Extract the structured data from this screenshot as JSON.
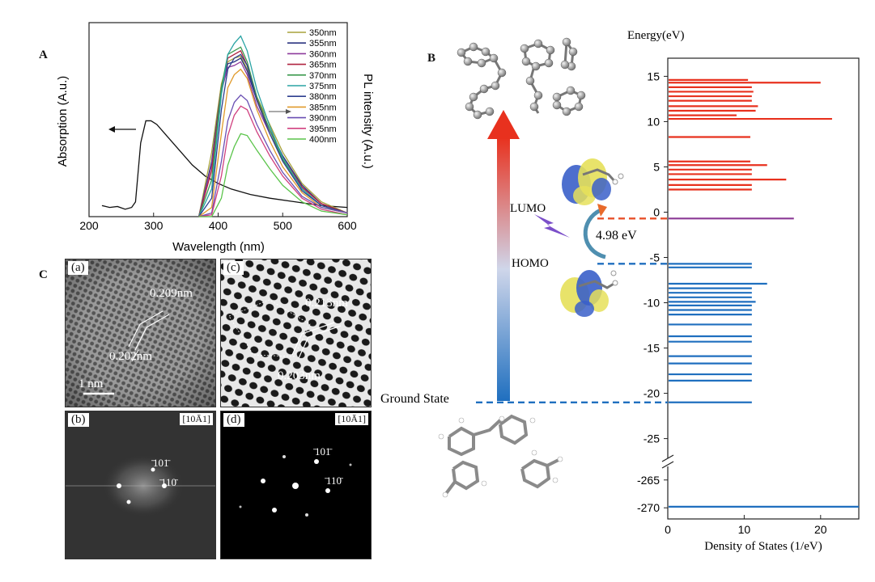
{
  "figure": {
    "panel_labels": {
      "A": "A",
      "B": "B",
      "C": "C"
    },
    "colors": {
      "red": "#e8311e",
      "blue": "#1f6fbf",
      "purple": "#8b3a96"
    }
  },
  "chart_data": [
    {
      "type": "line",
      "panel": "A",
      "xlabel": "Wavelength (nm)",
      "ylabel_left": "Absorption (A.u.)",
      "ylabel_right": "PL intensity (A.u.)",
      "xlim": [
        200,
        600
      ],
      "x_ticks": [
        200,
        300,
        400,
        500,
        600
      ],
      "absorption": {
        "x": [
          220,
          232,
          244,
          256,
          266,
          272,
          280,
          288,
          296,
          305,
          320,
          340,
          360,
          380,
          400,
          420,
          450,
          480,
          520,
          560,
          600
        ],
        "y": [
          0.06,
          0.05,
          0.055,
          0.04,
          0.05,
          0.08,
          0.4,
          0.52,
          0.52,
          0.5,
          0.44,
          0.36,
          0.28,
          0.22,
          0.18,
          0.15,
          0.12,
          0.1,
          0.08,
          0.06,
          0.05
        ]
      },
      "pl_x": [
        370,
        390,
        405,
        415,
        425,
        435,
        445,
        460,
        480,
        500,
        530,
        560,
        600
      ],
      "series": [
        {
          "name": "350nm",
          "color": "#a7a23a",
          "peak": 0.87,
          "values": [
            0.0,
            0.35,
            0.72,
            0.84,
            0.86,
            0.87,
            0.8,
            0.65,
            0.5,
            0.35,
            0.18,
            0.08,
            0.02
          ]
        },
        {
          "name": "355nm",
          "color": "#2b3580",
          "peak": 0.86,
          "values": [
            0.0,
            0.3,
            0.7,
            0.83,
            0.84,
            0.86,
            0.79,
            0.63,
            0.47,
            0.33,
            0.17,
            0.07,
            0.02
          ]
        },
        {
          "name": "360nm",
          "color": "#8e3a9b",
          "peak": 0.84,
          "values": [
            0.0,
            0.28,
            0.68,
            0.81,
            0.82,
            0.84,
            0.77,
            0.6,
            0.45,
            0.31,
            0.16,
            0.07,
            0.02
          ]
        },
        {
          "name": "365nm",
          "color": "#b0233f",
          "peak": 0.9,
          "values": [
            0.0,
            0.25,
            0.7,
            0.86,
            0.88,
            0.9,
            0.82,
            0.64,
            0.47,
            0.32,
            0.16,
            0.07,
            0.02
          ]
        },
        {
          "name": "370nm",
          "color": "#3d9a4f",
          "peak": 0.92,
          "values": [
            0.0,
            0.2,
            0.7,
            0.88,
            0.9,
            0.92,
            0.84,
            0.65,
            0.47,
            0.31,
            0.15,
            0.06,
            0.02
          ]
        },
        {
          "name": "375nm",
          "color": "#2aa4a4",
          "peak": 0.98,
          "values": [
            0.0,
            0.15,
            0.66,
            0.88,
            0.94,
            0.98,
            0.9,
            0.69,
            0.49,
            0.32,
            0.15,
            0.06,
            0.02
          ]
        },
        {
          "name": "380nm",
          "color": "#2e3f8f",
          "peak": 0.88,
          "values": [
            0.0,
            0.1,
            0.58,
            0.8,
            0.86,
            0.88,
            0.82,
            0.63,
            0.45,
            0.3,
            0.14,
            0.06,
            0.02
          ]
        },
        {
          "name": "385nm",
          "color": "#e09a2a",
          "peak": 0.8,
          "values": [
            0.0,
            0.05,
            0.45,
            0.7,
            0.77,
            0.8,
            0.75,
            0.58,
            0.41,
            0.27,
            0.13,
            0.05,
            0.02
          ]
        },
        {
          "name": "390nm",
          "color": "#6a4fb3",
          "peak": 0.66,
          "values": [
            0.0,
            0.02,
            0.3,
            0.52,
            0.62,
            0.66,
            0.63,
            0.5,
            0.36,
            0.24,
            0.11,
            0.05,
            0.02
          ]
        },
        {
          "name": "395nm",
          "color": "#d0407f",
          "peak": 0.6,
          "values": [
            0.0,
            0.01,
            0.22,
            0.44,
            0.55,
            0.6,
            0.58,
            0.46,
            0.33,
            0.22,
            0.1,
            0.04,
            0.01
          ]
        },
        {
          "name": "400nm",
          "color": "#5ac44a",
          "peak": 0.45,
          "values": [
            0.0,
            0.0,
            0.1,
            0.28,
            0.38,
            0.45,
            0.44,
            0.36,
            0.26,
            0.17,
            0.08,
            0.03,
            0.01
          ]
        }
      ]
    },
    {
      "type": "bar",
      "panel": "B",
      "title": "Energy(eV)",
      "xlabel": "Density of States (1/eV)",
      "xlim": [
        0,
        25
      ],
      "x_ticks": [
        0,
        10,
        20
      ],
      "y_ticks_upper": [
        15,
        10,
        5,
        0,
        -5,
        -10,
        -15,
        -20,
        -25
      ],
      "y_ticks_lower": [
        -265,
        -270
      ],
      "ylim_upper": [
        -27,
        17
      ],
      "ylim_lower": [
        -272,
        -263
      ],
      "states_red": [
        {
          "e": 14.6,
          "d": 10.5
        },
        {
          "e": 14.3,
          "d": 20.0
        },
        {
          "e": 13.8,
          "d": 11.0
        },
        {
          "e": 13.3,
          "d": 11.2
        },
        {
          "e": 12.8,
          "d": 11.0
        },
        {
          "e": 12.3,
          "d": 11.0
        },
        {
          "e": 11.7,
          "d": 11.8
        },
        {
          "e": 11.2,
          "d": 11.5
        },
        {
          "e": 10.7,
          "d": 9.0
        },
        {
          "e": 10.3,
          "d": 21.5
        },
        {
          "e": 8.3,
          "d": 10.8
        },
        {
          "e": 5.6,
          "d": 10.8
        },
        {
          "e": 5.2,
          "d": 13.0
        },
        {
          "e": 4.7,
          "d": 11.0
        },
        {
          "e": 4.2,
          "d": 11.0
        },
        {
          "e": 3.6,
          "d": 15.5
        },
        {
          "e": 3.0,
          "d": 11.0
        },
        {
          "e": 2.5,
          "d": 11.0
        }
      ],
      "states_lumo": [
        {
          "e": -0.7,
          "d": 16.5
        }
      ],
      "states_blue": [
        {
          "e": -5.7,
          "d": 11.0
        },
        {
          "e": -6.1,
          "d": 11.0
        },
        {
          "e": -7.9,
          "d": 13.0
        },
        {
          "e": -8.4,
          "d": 11.0
        },
        {
          "e": -8.9,
          "d": 11.0
        },
        {
          "e": -9.4,
          "d": 11.0
        },
        {
          "e": -9.9,
          "d": 11.5
        },
        {
          "e": -10.3,
          "d": 11.0
        },
        {
          "e": -10.8,
          "d": 11.0
        },
        {
          "e": -11.3,
          "d": 11.0
        },
        {
          "e": -12.4,
          "d": 11.0
        },
        {
          "e": -13.7,
          "d": 11.0
        },
        {
          "e": -14.3,
          "d": 11.0
        },
        {
          "e": -15.9,
          "d": 11.0
        },
        {
          "e": -16.7,
          "d": 11.0
        },
        {
          "e": -17.9,
          "d": 11.0
        },
        {
          "e": -18.6,
          "d": 11.0
        },
        {
          "e": -21.0,
          "d": 11.0
        }
      ],
      "states_deep": [
        {
          "e": -269.8,
          "d": 25.0
        }
      ]
    }
  ],
  "panel_b": {
    "lumo_label": "LUMO",
    "homo_label": "HOMO",
    "gap_label": "4.98 eV",
    "ground_state_label": "Ground State",
    "lumo_energy": -0.7,
    "homo_energy": -5.7,
    "ground_energy": -21.0
  },
  "panel_c": {
    "a": {
      "letter": "(a)",
      "spacing_1": "0.209nm",
      "spacing_2": "0.202nm",
      "scale_bar": "1 nm"
    },
    "b": {
      "letter": "(b)",
      "zone_axis": "[10Ā1]",
      "spot_1": "̄101̄",
      "spot_2": "̄110̄"
    },
    "c": {
      "letter": "(c)",
      "spacing_1": "0.213nm",
      "spacing_2": "0.203nm"
    },
    "d": {
      "letter": "(d)",
      "zone_axis": "[10Ā1]",
      "spot_1": "̄101̄",
      "spot_2": "̄110̄"
    }
  }
}
